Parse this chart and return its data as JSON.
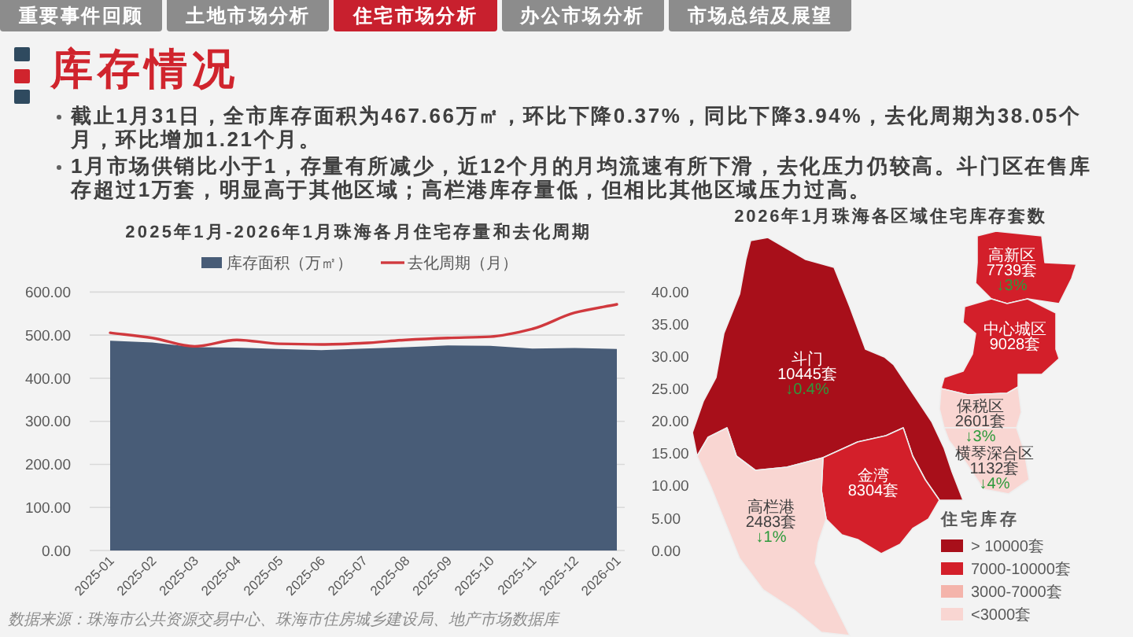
{
  "chart_data": [
    {
      "type": "other",
      "title": "库存情况",
      "categories": [
        "重要事件回顾",
        "土地市场分析",
        "住宅市场分析",
        "办公市场分析",
        "市场总结及展望"
      ],
      "colors": [
        "#8c8c8c",
        "#8c8c8c",
        "#c8202e",
        "#8c8c8c",
        "#8c8c8c"
      ],
      "annotations": [
        "截止1月31日，全市库存面积为467.66万㎡，环比下降0.37%，同比下降3.94%，去化周期为38.05个月，环比增加1.21个月。",
        "1月市场供销比小于1，存量有所减少，近12个月的月均流速有所下滑，去化压力仍较高。斗门区在售库存超过1万套，明显高于其他区域；高栏港库存量低，但相比其他区域压力过高。"
      ]
    },
    {
      "type": "area",
      "title": "2025年1月-2026年1月珠海各月住宅存量和去化周期",
      "categories": [
        "2025-01",
        "2025-02",
        "2025-03",
        "2025-04",
        "2025-05",
        "2025-06",
        "2025-07",
        "2025-08",
        "2025-09",
        "2025-10",
        "2025-11",
        "2025-12",
        "2026-01"
      ],
      "series": [
        {
          "name": "库存面积（万㎡）",
          "type": "area",
          "color": "#485c77",
          "values": [
            487,
            483,
            472,
            471,
            468,
            465,
            469,
            472,
            476,
            475,
            469,
            470,
            468
          ]
        },
        {
          "name": "去化周期（月）",
          "type": "line",
          "axis": "y2",
          "color": "#d0393e",
          "values": [
            33.7,
            32.9,
            31.6,
            32.6,
            32.0,
            31.9,
            32.1,
            32.6,
            32.9,
            33.1,
            34.3,
            36.8,
            38.1
          ]
        }
      ],
      "ylim": [
        0,
        600
      ],
      "yticks": [
        {
          "value": 0,
          "label": "0.00"
        },
        {
          "value": 100,
          "label": "100.00"
        },
        {
          "value": 200,
          "label": "200.00"
        },
        {
          "value": 300,
          "label": "300.00"
        },
        {
          "value": 400,
          "label": "400.00"
        },
        {
          "value": 500,
          "label": "500.00"
        },
        {
          "value": 600,
          "label": "600.00"
        }
      ],
      "y2lim": [
        0,
        40
      ],
      "y2ticks": [
        {
          "value": 0,
          "label": "0.00"
        },
        {
          "value": 5,
          "label": "5.00"
        },
        {
          "value": 10,
          "label": "10.00"
        },
        {
          "value": 15,
          "label": "15.00"
        },
        {
          "value": 20,
          "label": "20.00"
        },
        {
          "value": 25,
          "label": "25.00"
        },
        {
          "value": 30,
          "label": "30.00"
        },
        {
          "value": 35,
          "label": "35.00"
        },
        {
          "value": 40,
          "label": "40.00"
        }
      ],
      "grid": "y",
      "legend": "top",
      "annotations": [
        "数据来源：珠海市公共资源交易中心、珠海市住房城乡建设局、地产市场数据库"
      ]
    },
    {
      "type": "other",
      "title": "2026年1月珠海各区域住宅库存套数",
      "categories": [
        "斗门",
        "金湾",
        "高栏港",
        "高新区",
        "中心城区",
        "保税区",
        "横琴深合区"
      ],
      "series": [
        {
          "name": "> 10000套",
          "color": "#a80f1a",
          "values": [
            10445,
            null,
            null,
            null,
            null,
            null,
            null
          ],
          "value_labels": [
            "10445套",
            null,
            null,
            null,
            null,
            null,
            null
          ]
        },
        {
          "name": "7000-10000套",
          "color": "#d31f2a",
          "values": [
            null,
            8304,
            null,
            7739,
            9028,
            null,
            null
          ],
          "value_labels": [
            null,
            "8304套",
            null,
            "7739套",
            "9028套",
            null,
            null
          ]
        },
        {
          "name": "3000-7000套",
          "color": "#f4b4ab",
          "values": [
            null,
            null,
            null,
            null,
            null,
            null,
            null
          ],
          "value_labels": [
            null,
            null,
            null,
            null,
            null,
            null,
            null
          ]
        },
        {
          "name": "<3000套",
          "color": "#f9d6d2",
          "values": [
            null,
            null,
            2483,
            null,
            null,
            2601,
            1132
          ],
          "value_labels": [
            null,
            null,
            "2483套",
            null,
            null,
            "2601套",
            "1132套"
          ]
        }
      ],
      "legend_title": "住宅库存",
      "legend": "bottom right",
      "annotations": [
        {
          "text": "↓0.4%",
          "x": "斗门"
        },
        {
          "text": "↓1%",
          "x": "高栏港"
        },
        {
          "text": "↓3%",
          "x": "高新区"
        },
        {
          "text": "↓3%",
          "x": "保税区"
        },
        {
          "text": "↓4%",
          "x": "横琴深合区"
        }
      ]
    }
  ]
}
